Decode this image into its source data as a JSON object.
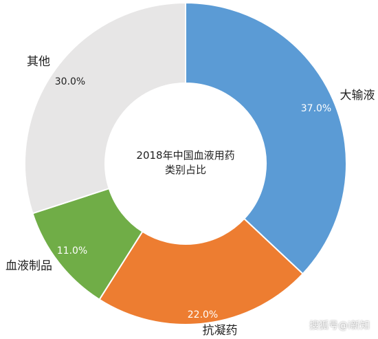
{
  "chart_data": {
    "type": "pie",
    "donut": true,
    "center_title": [
      "2018年中国血液用药",
      "类别占比"
    ],
    "slices": [
      {
        "label": "大输液",
        "value": 37.0,
        "value_label": "37.0%",
        "color": "#5b9bd5"
      },
      {
        "label": "抗凝药",
        "value": 22.0,
        "value_label": "22.0%",
        "color": "#ed7d31"
      },
      {
        "label": "血液制品",
        "value": 11.0,
        "value_label": "11.0%",
        "color": "#70ad47"
      },
      {
        "label": "其他",
        "value": 30.0,
        "value_label": "30.0%",
        "color": "#e7e6e6"
      }
    ],
    "legend": "none"
  },
  "watermark": "搜狐号@i新知"
}
